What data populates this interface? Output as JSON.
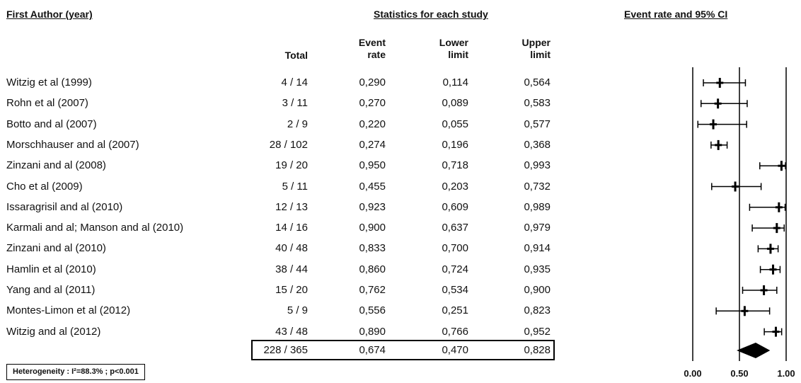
{
  "headers": {
    "author": "First Author (year)",
    "statistics": "Statistics for each study",
    "forest": "Event rate and 95% CI"
  },
  "columns": {
    "total": "Total",
    "event_rate": [
      "Event",
      "rate"
    ],
    "lower_limit": [
      "Lower",
      "limit"
    ],
    "upper_limit": [
      "Upper",
      "limit"
    ]
  },
  "studies": [
    {
      "author": "Witzig et al (1999)",
      "total": "4 / 14",
      "rate": "0,290",
      "lower": "0,114",
      "upper": "0,564"
    },
    {
      "author": "Rohn et al (2007)",
      "total": "3 / 11",
      "rate": "0,270",
      "lower": "0,089",
      "upper": "0,583"
    },
    {
      "author": "Botto and al (2007)",
      "total": "2 / 9",
      "rate": "0,220",
      "lower": "0,055",
      "upper": "0,577"
    },
    {
      "author": "Morschhauser and al (2007)",
      "total": "28 / 102",
      "rate": "0,274",
      "lower": "0,196",
      "upper": "0,368"
    },
    {
      "author": "Zinzani and al (2008)",
      "total": "19 / 20",
      "rate": "0,950",
      "lower": "0,718",
      "upper": "0,993"
    },
    {
      "author": "Cho et al (2009)",
      "total": "5 / 11",
      "rate": "0,455",
      "lower": "0,203",
      "upper": "0,732"
    },
    {
      "author": "Issaragrisil and al (2010)",
      "total": "12 / 13",
      "rate": "0,923",
      "lower": "0,609",
      "upper": "0,989"
    },
    {
      "author": "Karmali and al; Manson and al (2010)",
      "total": "14 / 16",
      "rate": "0,900",
      "lower": "0,637",
      "upper": "0,979"
    },
    {
      "author": "Zinzani and al (2010)",
      "total": "40 / 48",
      "rate": "0,833",
      "lower": "0,700",
      "upper": "0,914"
    },
    {
      "author": "Hamlin et al (2010)",
      "total": "38 / 44",
      "rate": "0,860",
      "lower": "0,724",
      "upper": "0,935"
    },
    {
      "author": "Yang and al (2011)",
      "total": "15 / 20",
      "rate": "0,762",
      "lower": "0,534",
      "upper": "0,900"
    },
    {
      "author": "Montes-Limon et al (2012)",
      "total": "5 / 9",
      "rate": "0,556",
      "lower": "0,251",
      "upper": "0,823"
    },
    {
      "author": "Witzig and al (2012)",
      "total": "43 / 48",
      "rate": "0,890",
      "lower": "0,766",
      "upper": "0,952"
    }
  ],
  "summary": {
    "total": "228 / 365",
    "rate": "0,674",
    "lower": "0,470",
    "upper": "0,828"
  },
  "heterogeneity": "Heterogeneity : I²=88.3% ; p<0.001",
  "chart_data": {
    "type": "forest",
    "title": "Event rate and 95% CI",
    "xlim": [
      0,
      1
    ],
    "x_ticks": [
      0.0,
      0.5,
      1.0
    ],
    "x_tick_labels": [
      "0.00",
      "0.50",
      "1.00"
    ],
    "reference_lines": [
      0.0,
      0.5,
      1.0
    ],
    "studies": [
      {
        "label": "Witzig et al (1999)",
        "estimate": 0.29,
        "lower": 0.114,
        "upper": 0.564
      },
      {
        "label": "Rohn et al (2007)",
        "estimate": 0.27,
        "lower": 0.089,
        "upper": 0.583
      },
      {
        "label": "Botto and al (2007)",
        "estimate": 0.22,
        "lower": 0.055,
        "upper": 0.577
      },
      {
        "label": "Morschhauser and al (2007)",
        "estimate": 0.274,
        "lower": 0.196,
        "upper": 0.368
      },
      {
        "label": "Zinzani and al (2008)",
        "estimate": 0.95,
        "lower": 0.718,
        "upper": 0.993
      },
      {
        "label": "Cho et al (2009)",
        "estimate": 0.455,
        "lower": 0.203,
        "upper": 0.732
      },
      {
        "label": "Issaragrisil and al (2010)",
        "estimate": 0.923,
        "lower": 0.609,
        "upper": 0.989
      },
      {
        "label": "Karmali and al; Manson and al (2010)",
        "estimate": 0.9,
        "lower": 0.637,
        "upper": 0.979
      },
      {
        "label": "Zinzani and al (2010)",
        "estimate": 0.833,
        "lower": 0.7,
        "upper": 0.914
      },
      {
        "label": "Hamlin et al (2010)",
        "estimate": 0.86,
        "lower": 0.724,
        "upper": 0.935
      },
      {
        "label": "Yang and al (2011)",
        "estimate": 0.762,
        "lower": 0.534,
        "upper": 0.9
      },
      {
        "label": "Montes-Limon et al (2012)",
        "estimate": 0.556,
        "lower": 0.251,
        "upper": 0.823
      },
      {
        "label": "Witzig and al (2012)",
        "estimate": 0.89,
        "lower": 0.766,
        "upper": 0.952
      }
    ],
    "pooled": {
      "estimate": 0.674,
      "lower": 0.47,
      "upper": 0.828
    }
  }
}
